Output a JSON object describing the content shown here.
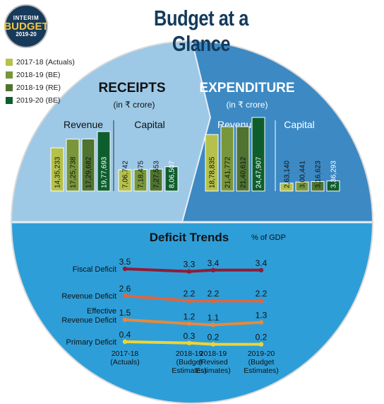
{
  "logo": {
    "line1": "INTERIM",
    "line2": "BUDGET",
    "line3": "2019-20"
  },
  "title": "Budget at a Glance",
  "legend": [
    {
      "label": "2017-18 (Actuals)",
      "color": "#b5c14a"
    },
    {
      "label": "2018-19 (BE)",
      "color": "#78963a"
    },
    {
      "label": "2018-19 (RE)",
      "color": "#4f7331"
    },
    {
      "label": "2019-20 (BE)",
      "color": "#0e5e2d"
    }
  ],
  "colors": {
    "receipts_bg": "#9dc9e7",
    "expenditure_bg": "#3d89c3",
    "deficit_bg": "#2e9ed8",
    "circle_edge": "#dadada"
  },
  "chart_data": [
    {
      "type": "bar",
      "title": "RECEIPTS",
      "subtitle": "(in ₹ crore)",
      "groups": [
        {
          "name": "Revenue",
          "values": [
            1435233,
            1725738,
            1729682,
            1977693
          ],
          "labels": [
            "14,35,233",
            "17,25,738",
            "17,29,682",
            "19,77,693"
          ]
        },
        {
          "name": "Capital",
          "values": [
            706742,
            718475,
            727553,
            806507
          ],
          "labels": [
            "7,06,742",
            "7,18,475",
            "7,27,553",
            "8,06,507"
          ]
        }
      ],
      "series_names": [
        "2017-18 (Actuals)",
        "2018-19 (BE)",
        "2018-19 (RE)",
        "2019-20 (BE)"
      ]
    },
    {
      "type": "bar",
      "title": "EXPENDITURE",
      "subtitle": "(in ₹ crore)",
      "groups": [
        {
          "name": "Revenue",
          "values": [
            1878835,
            2141772,
            2140612,
            2447907
          ],
          "labels": [
            "18,78,835",
            "21,41,772",
            "21,40,612",
            "24,47,907"
          ]
        },
        {
          "name": "Capital",
          "values": [
            263140,
            300441,
            316623,
            336293
          ],
          "labels": [
            "2,63,140",
            "3,00,441",
            "3,16,623",
            "3,36,293"
          ]
        }
      ],
      "series_names": [
        "2017-18 (Actuals)",
        "2018-19 (BE)",
        "2018-19 (RE)",
        "2019-20 (BE)"
      ]
    },
    {
      "type": "line",
      "title": "Deficit Trends",
      "unit": "% of GDP",
      "x": [
        "2017-18\n(Actuals)",
        "2018-19\n(Budget\nEstimates)",
        "2018-19\n(Revised\nEstimates)",
        "2019-20\n(Budget\nEstimates)"
      ],
      "series": [
        {
          "name": "Fiscal Deficit",
          "values": [
            3.5,
            3.3,
            3.4,
            3.4
          ],
          "color": "#8f1c35"
        },
        {
          "name": "Revenue Deficit",
          "values": [
            2.6,
            2.2,
            2.2,
            2.2
          ],
          "color": "#e0663c"
        },
        {
          "name": "Effective\nRevenue Deficit",
          "values": [
            1.5,
            1.2,
            1.1,
            1.3
          ],
          "color": "#e58a3c"
        },
        {
          "name": "Primary Deficit",
          "values": [
            0.4,
            0.3,
            0.2,
            0.2
          ],
          "color": "#efd435"
        }
      ]
    }
  ]
}
